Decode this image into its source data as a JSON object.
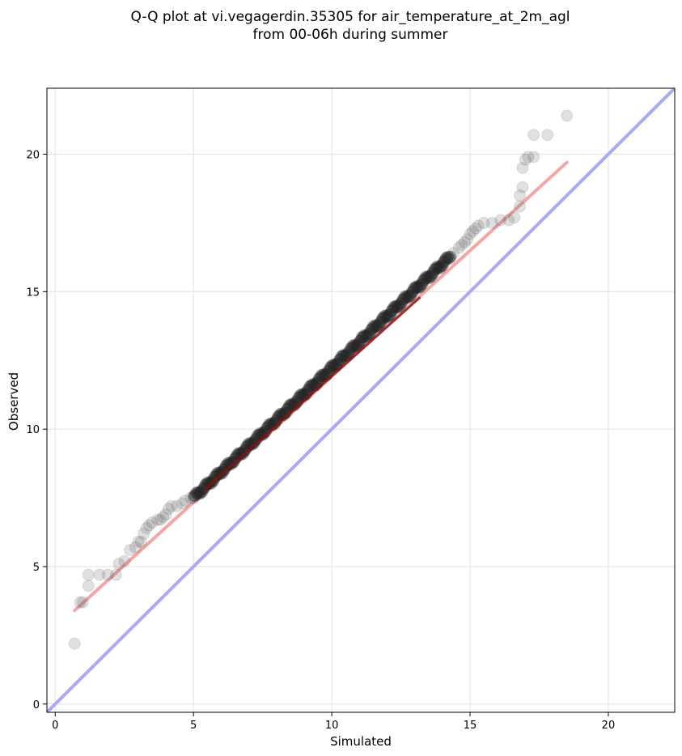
{
  "chart_data": {
    "type": "scatter",
    "title": [
      "Q-Q plot at vi.vegagerdin.35305 for air_temperature_at_2m_agl",
      "from 00-06h during summer"
    ],
    "xlabel": "Simulated",
    "ylabel": "Observed",
    "xlim": [
      -0.3,
      22.4
    ],
    "ylim": [
      -0.3,
      22.4
    ],
    "xticks": [
      0,
      5,
      10,
      15,
      20
    ],
    "yticks": [
      0,
      5,
      10,
      15,
      20
    ],
    "xtick_labels": [
      "0",
      "5",
      "10",
      "15",
      "20"
    ],
    "ytick_labels": [
      "0",
      "5",
      "10",
      "15",
      "20"
    ],
    "grid": true,
    "identity_line": {
      "from": [
        -0.3,
        -0.3
      ],
      "to": [
        22.4,
        22.4
      ],
      "color": "#a9aaf2"
    },
    "fit_line": {
      "from": [
        0.7,
        3.4
      ],
      "to": [
        18.5,
        19.7
      ],
      "color": "#f4a6a6"
    },
    "central_fit_line": {
      "from": [
        5.4,
        7.8
      ],
      "to": [
        13.2,
        14.8
      ],
      "color": "#8b1010"
    },
    "colors": {
      "points": "#555555",
      "dense_points": "#222222"
    },
    "tail_points": [
      [
        0.7,
        2.2
      ],
      [
        0.9,
        3.7
      ],
      [
        1.0,
        3.7
      ],
      [
        1.2,
        4.3
      ],
      [
        1.2,
        4.7
      ],
      [
        1.6,
        4.7
      ],
      [
        1.9,
        4.7
      ],
      [
        2.2,
        4.7
      ],
      [
        2.3,
        5.1
      ],
      [
        2.5,
        5.2
      ],
      [
        2.7,
        5.6
      ],
      [
        2.9,
        5.7
      ],
      [
        3.0,
        5.9
      ],
      [
        3.1,
        5.9
      ],
      [
        3.2,
        6.2
      ],
      [
        3.3,
        6.4
      ],
      [
        3.4,
        6.5
      ],
      [
        3.5,
        6.6
      ],
      [
        3.7,
        6.7
      ],
      [
        3.8,
        6.7
      ],
      [
        3.9,
        6.8
      ],
      [
        4.0,
        6.9
      ],
      [
        4.1,
        7.1
      ],
      [
        4.2,
        7.2
      ],
      [
        4.4,
        7.2
      ],
      [
        4.6,
        7.3
      ],
      [
        4.7,
        7.4
      ],
      [
        4.9,
        7.5
      ],
      [
        14.4,
        16.4
      ],
      [
        14.6,
        16.6
      ],
      [
        14.7,
        16.7
      ],
      [
        14.8,
        16.8
      ],
      [
        14.9,
        16.9
      ],
      [
        15.0,
        17.1
      ],
      [
        15.1,
        17.2
      ],
      [
        15.2,
        17.3
      ],
      [
        15.3,
        17.4
      ],
      [
        15.5,
        17.5
      ],
      [
        15.8,
        17.5
      ],
      [
        16.1,
        17.6
      ],
      [
        16.4,
        17.6
      ],
      [
        16.6,
        17.7
      ],
      [
        16.8,
        18.1
      ],
      [
        16.8,
        18.5
      ],
      [
        16.9,
        18.8
      ],
      [
        16.9,
        19.5
      ],
      [
        17.0,
        19.8
      ],
      [
        17.1,
        19.9
      ],
      [
        17.3,
        19.9
      ],
      [
        17.3,
        20.7
      ],
      [
        17.8,
        20.7
      ],
      [
        18.5,
        21.4
      ]
    ],
    "dense_segment": {
      "from": [
        5.0,
        7.5
      ],
      "to": [
        14.3,
        16.3
      ],
      "count": 420
    }
  }
}
